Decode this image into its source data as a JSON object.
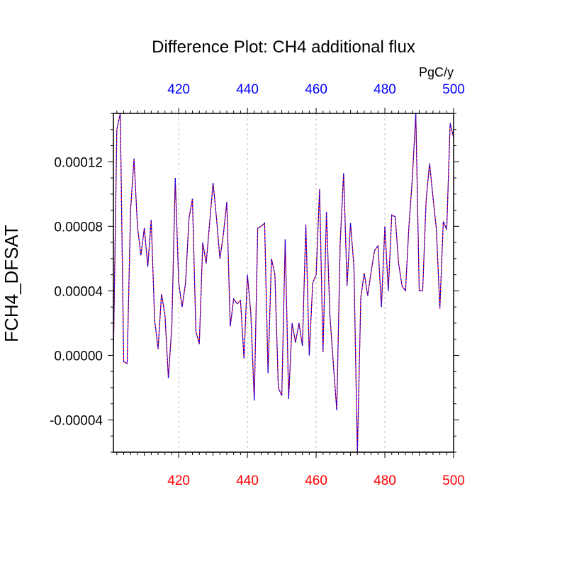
{
  "chart_data": {
    "type": "line",
    "title": "Difference Plot: CH4 additional flux",
    "units": "PgC/y",
    "ylabel": "FCH4_DFSAT",
    "xlim": [
      401,
      500
    ],
    "ylim": [
      -6e-05,
      0.00015
    ],
    "yticks": [
      -4e-05,
      0.0,
      4e-05,
      8e-05,
      0.00012
    ],
    "ytick_labels": [
      "-0.00004",
      "0.00000",
      "0.00004",
      "0.00008",
      "0.00012"
    ],
    "xticks": [
      420,
      440,
      460,
      480,
      500
    ],
    "xtick_labels_bottom": [
      "420",
      "440",
      "460",
      "480",
      "500"
    ],
    "xtick_labels_top": [
      "420",
      "440",
      "460",
      "480",
      "500"
    ],
    "bottom_axis_color": "#ff0000",
    "top_axis_color": "#0000ff",
    "grid": "vertical dotted at major x ticks",
    "series": [
      {
        "line_colors": [
          "#ff0000",
          "#0000ff"
        ],
        "line_style": "dashed overlay",
        "x": [
          401,
          402,
          403,
          404,
          405,
          406,
          407,
          408,
          409,
          410,
          411,
          412,
          413,
          414,
          415,
          416,
          417,
          418,
          419,
          420,
          421,
          422,
          423,
          424,
          425,
          426,
          427,
          428,
          429,
          430,
          431,
          432,
          433,
          434,
          435,
          436,
          437,
          438,
          439,
          440,
          441,
          442,
          443,
          444,
          445,
          446,
          447,
          448,
          449,
          450,
          451,
          452,
          453,
          454,
          455,
          456,
          457,
          458,
          459,
          460,
          461,
          462,
          463,
          464,
          465,
          466,
          467,
          468,
          469,
          470,
          471,
          472,
          473,
          474,
          475,
          476,
          477,
          478,
          479,
          480,
          481,
          482,
          483,
          484,
          485,
          486,
          487,
          488,
          489,
          490,
          491,
          492,
          493,
          494,
          495,
          496,
          497,
          498,
          499,
          500
        ],
        "values": [
          0.0,
          0.00014,
          0.00015,
          -4e-06,
          -5e-06,
          9e-05,
          0.000122,
          8e-05,
          6.2e-05,
          7.9e-05,
          5.5e-05,
          8.4e-05,
          2.2e-05,
          4e-06,
          3.8e-05,
          2.5e-05,
          -1.4e-05,
          1.8e-05,
          0.00011,
          4.5e-05,
          3e-05,
          4.5e-05,
          8.5e-05,
          9.7e-05,
          1.5e-05,
          7e-06,
          7e-05,
          5.7e-05,
          8.2e-05,
          0.000107,
          8.5e-05,
          6e-05,
          7.5e-05,
          9.5e-05,
          1.8e-05,
          3.5e-05,
          3.2e-05,
          3.4e-05,
          -2e-06,
          5e-05,
          2.6e-05,
          -2.8e-05,
          7.9e-05,
          8e-05,
          8.2e-05,
          -1.1e-05,
          6e-05,
          5e-05,
          -2e-05,
          -2.5e-05,
          7.2e-05,
          -2.7e-05,
          2e-05,
          8e-06,
          2e-05,
          6e-06,
          8.1e-05,
          0.0,
          4.5e-05,
          5e-05,
          0.000103,
          2e-06,
          8.9e-05,
          2.5e-05,
          -5e-06,
          -3.4e-05,
          7e-05,
          0.000113,
          4.3e-05,
          8.2e-05,
          5.5e-05,
          -6.1e-05,
          3.6e-05,
          5.1e-05,
          3.7e-05,
          5.2e-05,
          6.5e-05,
          6.8e-05,
          3e-05,
          8e-05,
          4e-05,
          8.7e-05,
          8.6e-05,
          5.7e-05,
          4.3e-05,
          4e-05,
          8e-05,
          0.00011,
          0.00015,
          4e-05,
          4e-05,
          9.6e-05,
          0.000119,
          9.8e-05,
          7.8e-05,
          2.9e-05,
          8.3e-05,
          7.8e-05,
          0.000144,
          0.000135
        ]
      }
    ]
  }
}
